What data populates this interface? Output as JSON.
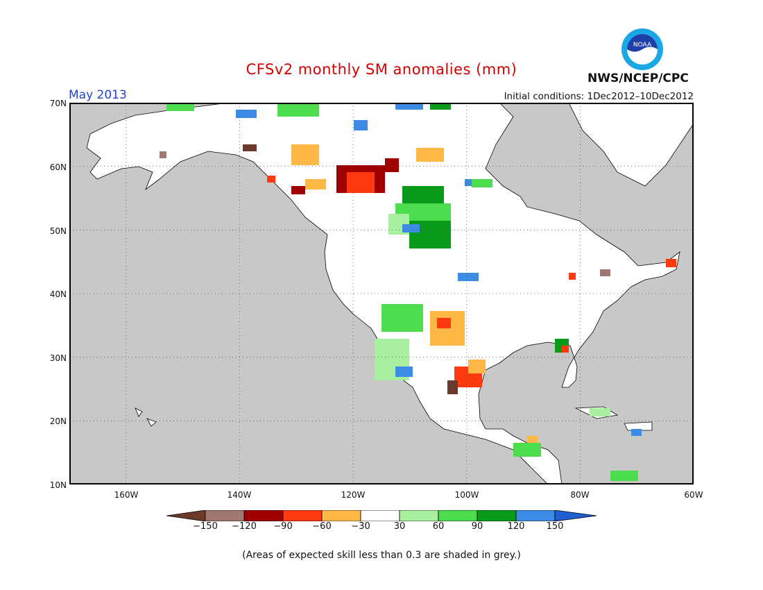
{
  "header": {
    "title": "CFSv2 monthly SM anomalies (mm)",
    "month": "May 2013",
    "initial_conditions": "Initial conditions: 1Dec2012–10Dec2012",
    "agency": "NWS/NCEP/CPC",
    "logo_text": "NOAA"
  },
  "map": {
    "type": "choropleth-grid",
    "region": "North America",
    "lon_range": [
      -175,
      -60
    ],
    "lat_range": [
      10,
      70
    ],
    "lat_labels": [
      "70N",
      "60N",
      "50N",
      "40N",
      "30N",
      "20N",
      "10N"
    ],
    "lon_labels": [
      "160W",
      "140W",
      "120W",
      "100W",
      "80W",
      "60W"
    ],
    "gridlines": "dotted",
    "colors": {
      "ocean_low_skill": "#c8c8c8",
      "land_no_anomaly": "#ffffff",
      "border": "#000000"
    }
  },
  "colorbar": {
    "ticks": [
      "−150",
      "−120",
      "−90",
      "−60",
      "−30",
      "30",
      "60",
      "90",
      "120",
      "150"
    ],
    "bins": [
      {
        "range": "<-150",
        "color": "#6b3a2a"
      },
      {
        "range": "-150..-120",
        "color": "#a07870"
      },
      {
        "range": "-120..-90",
        "color": "#a00000"
      },
      {
        "range": "-90..-60",
        "color": "#ff3a10"
      },
      {
        "range": "-60..-30",
        "color": "#ffb845"
      },
      {
        "range": "-30..30",
        "color": "#ffffff"
      },
      {
        "range": "30..60",
        "color": "#a8f0a0"
      },
      {
        "range": "60..90",
        "color": "#4ddc4d"
      },
      {
        "range": "90..120",
        "color": "#0a9a1a"
      },
      {
        "range": "120..150",
        "color": "#3c8ce6"
      },
      {
        "range": ">150",
        "color": "#1e5fd2"
      }
    ]
  },
  "footnote": "(Areas of expected skill less than 0.3 are shaded in grey.)"
}
